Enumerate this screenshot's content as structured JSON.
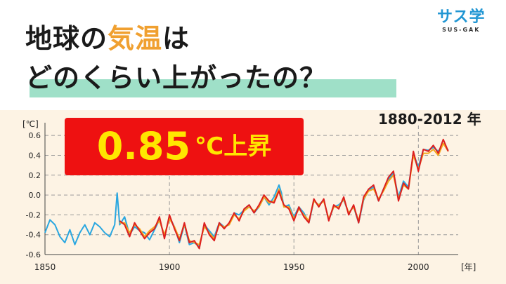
{
  "header": {
    "title_line1_part1": "地球の",
    "title_line1_accent": "気温",
    "title_line1_part2": "は",
    "title_line2": "どのくらい上がったの？"
  },
  "logo": {
    "main": "サス学",
    "sub": "SUS-GAK"
  },
  "period_label": "1880-2012 年",
  "badge": {
    "value": "0.85",
    "unit": "℃上昇"
  },
  "colors": {
    "title_accent": "#f0a030",
    "highlight": "#9fe0c8",
    "badge_bg": "#ee1111",
    "badge_text": "#ffe600",
    "chart_bg": "#fdf3e4",
    "logo": "#2196d3"
  },
  "chart_data": {
    "type": "line",
    "ylabel": "[℃]",
    "xlabel": "[年]",
    "xlim": [
      1850,
      2016
    ],
    "ylim": [
      -0.6,
      0.7
    ],
    "xticks": [
      1850,
      1900,
      1950,
      2000
    ],
    "yticks": [
      -0.6,
      -0.4,
      -0.2,
      0.0,
      0.2,
      0.4,
      0.6
    ],
    "ytick_labels": [
      "-0.6",
      "-0.4",
      "-0.2",
      "0.0",
      "0.2",
      "0.4",
      "0.6"
    ],
    "grid": "dashed",
    "series": [
      {
        "color": "#2aa7e0",
        "x": [
          1850,
          1852,
          1854,
          1856,
          1858,
          1860,
          1862,
          1864,
          1866,
          1868,
          1870,
          1872,
          1874,
          1876,
          1878,
          1879,
          1880,
          1882,
          1884,
          1886,
          1888,
          1890,
          1892,
          1894,
          1896,
          1898,
          1900,
          1902,
          1904,
          1906,
          1908,
          1910,
          1912,
          1914,
          1916,
          1918,
          1920,
          1922,
          1924,
          1926,
          1928,
          1930,
          1932,
          1934,
          1936,
          1938,
          1940,
          1942,
          1944,
          1945,
          1946,
          1948,
          1950,
          1952,
          1954,
          1956,
          1958,
          1960,
          1962,
          1964,
          1966,
          1968,
          1970,
          1972,
          1974,
          1976,
          1978,
          1980,
          1982,
          1984,
          1986,
          1988,
          1990,
          1992,
          1994,
          1996,
          1998,
          2000,
          2002,
          2004,
          2006,
          2008,
          2010,
          2012
        ],
        "y": [
          -0.38,
          -0.25,
          -0.3,
          -0.42,
          -0.48,
          -0.35,
          -0.5,
          -0.38,
          -0.3,
          -0.4,
          -0.28,
          -0.32,
          -0.38,
          -0.42,
          -0.3,
          0.02,
          -0.3,
          -0.22,
          -0.4,
          -0.32,
          -0.36,
          -0.38,
          -0.45,
          -0.35,
          -0.25,
          -0.42,
          -0.22,
          -0.32,
          -0.48,
          -0.3,
          -0.5,
          -0.48,
          -0.52,
          -0.3,
          -0.36,
          -0.42,
          -0.28,
          -0.32,
          -0.3,
          -0.18,
          -0.2,
          -0.15,
          -0.1,
          -0.18,
          -0.12,
          -0.02,
          -0.1,
          -0.02,
          0.1,
          0.02,
          -0.12,
          -0.1,
          -0.22,
          -0.12,
          -0.18,
          -0.28,
          -0.06,
          -0.1,
          -0.05,
          -0.25,
          -0.12,
          -0.1,
          -0.05,
          -0.18,
          -0.12,
          -0.28,
          -0.05,
          0.05,
          0.08,
          -0.06,
          0.06,
          0.16,
          0.22,
          -0.02,
          0.14,
          0.08,
          0.42,
          0.28,
          0.46,
          0.45,
          0.48,
          0.44,
          0.52,
          0.45
        ]
      },
      {
        "color": "#f4a61c",
        "x": [
          1880,
          1882,
          1884,
          1886,
          1888,
          1890,
          1892,
          1894,
          1896,
          1898,
          1900,
          1902,
          1904,
          1906,
          1908,
          1910,
          1912,
          1914,
          1916,
          1918,
          1920,
          1922,
          1924,
          1926,
          1928,
          1930,
          1932,
          1934,
          1936,
          1938,
          1940,
          1942,
          1944,
          1945,
          1946,
          1948,
          1950,
          1952,
          1954,
          1956,
          1958,
          1960,
          1962,
          1964,
          1966,
          1968,
          1970,
          1972,
          1974,
          1976,
          1978,
          1980,
          1982,
          1984,
          1986,
          1988,
          1990,
          1992,
          1994,
          1996,
          1998,
          2000,
          2002,
          2004,
          2006,
          2008,
          2010,
          2012
        ],
        "y": [
          -0.28,
          -0.28,
          -0.38,
          -0.3,
          -0.34,
          -0.42,
          -0.36,
          -0.32,
          -0.26,
          -0.4,
          -0.24,
          -0.32,
          -0.44,
          -0.3,
          -0.46,
          -0.48,
          -0.5,
          -0.32,
          -0.38,
          -0.44,
          -0.3,
          -0.32,
          -0.3,
          -0.2,
          -0.24,
          -0.16,
          -0.12,
          -0.16,
          -0.12,
          -0.02,
          -0.08,
          -0.06,
          0.06,
          -0.02,
          -0.12,
          -0.12,
          -0.24,
          -0.14,
          -0.2,
          -0.26,
          -0.06,
          -0.1,
          -0.06,
          -0.24,
          -0.12,
          -0.12,
          -0.04,
          -0.18,
          -0.12,
          -0.26,
          -0.04,
          0.04,
          0.06,
          -0.04,
          0.04,
          0.14,
          0.2,
          -0.04,
          0.1,
          0.06,
          0.4,
          0.26,
          0.42,
          0.42,
          0.46,
          0.4,
          0.52,
          0.44
        ]
      },
      {
        "color": "#dd1f1f",
        "x": [
          1880,
          1882,
          1884,
          1886,
          1888,
          1890,
          1892,
          1894,
          1896,
          1898,
          1900,
          1902,
          1904,
          1906,
          1908,
          1910,
          1912,
          1914,
          1916,
          1918,
          1920,
          1922,
          1924,
          1926,
          1928,
          1930,
          1932,
          1934,
          1936,
          1938,
          1940,
          1942,
          1944,
          1945,
          1946,
          1948,
          1950,
          1952,
          1954,
          1956,
          1958,
          1960,
          1962,
          1964,
          1966,
          1968,
          1970,
          1972,
          1974,
          1976,
          1978,
          1980,
          1982,
          1984,
          1986,
          1988,
          1990,
          1992,
          1994,
          1996,
          1998,
          2000,
          2002,
          2004,
          2006,
          2008,
          2010,
          2012
        ],
        "y": [
          -0.26,
          -0.3,
          -0.42,
          -0.28,
          -0.36,
          -0.44,
          -0.38,
          -0.34,
          -0.22,
          -0.44,
          -0.2,
          -0.34,
          -0.46,
          -0.28,
          -0.48,
          -0.46,
          -0.54,
          -0.28,
          -0.4,
          -0.46,
          -0.28,
          -0.34,
          -0.28,
          -0.18,
          -0.26,
          -0.14,
          -0.1,
          -0.18,
          -0.1,
          0.0,
          -0.06,
          -0.08,
          0.04,
          -0.04,
          -0.1,
          -0.14,
          -0.26,
          -0.12,
          -0.22,
          -0.28,
          -0.04,
          -0.12,
          -0.04,
          -0.26,
          -0.1,
          -0.14,
          -0.02,
          -0.2,
          -0.1,
          -0.28,
          -0.02,
          0.06,
          0.1,
          -0.06,
          0.06,
          0.18,
          0.24,
          -0.06,
          0.12,
          0.06,
          0.44,
          0.24,
          0.46,
          0.44,
          0.5,
          0.42,
          0.56,
          0.44
        ]
      }
    ]
  }
}
